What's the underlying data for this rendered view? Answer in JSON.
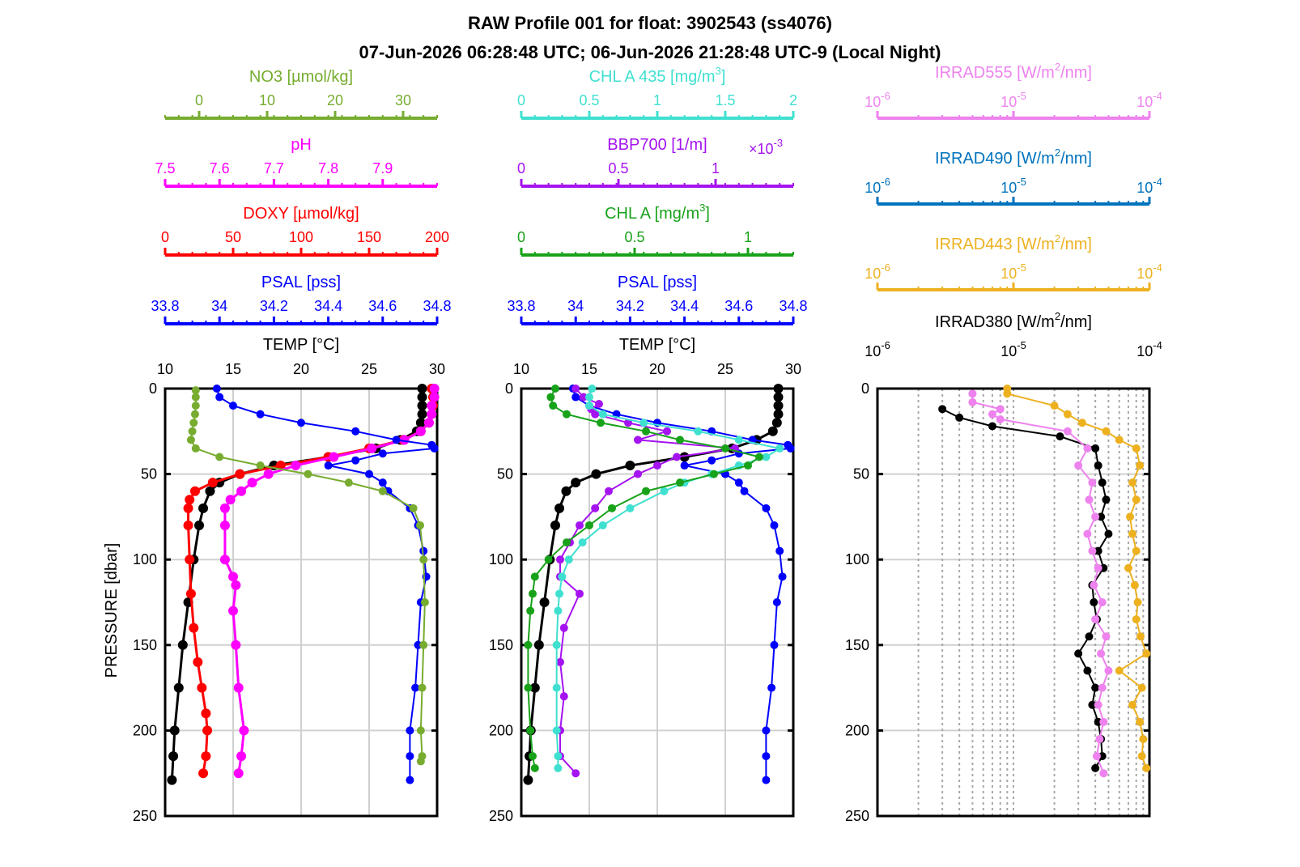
{
  "figure": {
    "title_line1": "RAW Profile 001 for float: 3902543 (ss4076)",
    "title_line2": "07-Jun-2026 06:28:48 UTC; 06-Jun-2026 21:28:48 UTC-9 (Local Night)"
  },
  "colors": {
    "temp": "#000000",
    "psal": "#0000ff",
    "doxy": "#ff0000",
    "ph": "#ff00ff",
    "no3": "#77ac30",
    "chla": "#18a21a",
    "bbp700": "#a513f0",
    "chla435": "#40e0d0",
    "irr380": "#000000",
    "irr443": "#edb120",
    "irr490": "#0072bd",
    "irr555": "#ee82ee",
    "grid": "#d0d0d0"
  },
  "chart_data": [
    {
      "type": "line",
      "panel": "left",
      "ylabel": "PRESSURE [dbar]",
      "ylim": [
        0,
        250
      ],
      "yticks": [
        0,
        50,
        100,
        150,
        200,
        250
      ],
      "axes": {
        "TEMP": {
          "label": "TEMP [°C]",
          "range": [
            10,
            30
          ],
          "ticks": [
            "10",
            "15",
            "20",
            "25",
            "30"
          ]
        },
        "PSAL": {
          "label": "PSAL [pss]",
          "range": [
            33.8,
            34.8
          ],
          "ticks": [
            "33.8",
            "34",
            "34.2",
            "34.4",
            "34.6",
            "34.8"
          ]
        },
        "DOXY": {
          "label": "DOXY [µmol/kg]",
          "range": [
            0,
            200
          ],
          "ticks": [
            "0",
            "50",
            "100",
            "150",
            "200"
          ]
        },
        "pH": {
          "label": "pH",
          "range": [
            7.5,
            8.0
          ],
          "ticks": [
            "7.5",
            "7.6",
            "7.7",
            "7.8",
            "7.9"
          ]
        },
        "NO3": {
          "label": "NO3 [µmol/kg]",
          "range": [
            -5,
            35
          ],
          "ticks": [
            "0",
            "10",
            "20",
            "30"
          ]
        }
      },
      "series": [
        {
          "name": "TEMP",
          "pressure": [
            0,
            5,
            10,
            15,
            20,
            25,
            30,
            35,
            40,
            45,
            50,
            55,
            60,
            70,
            80,
            100,
            125,
            150,
            175,
            200,
            215,
            229
          ],
          "values": [
            28.9,
            28.9,
            28.9,
            28.9,
            28.8,
            28.5,
            27.3,
            25.5,
            22.0,
            18.0,
            15.5,
            14.0,
            13.3,
            12.8,
            12.5,
            12.1,
            11.7,
            11.3,
            11.0,
            10.7,
            10.6,
            10.5
          ]
        },
        {
          "name": "PSAL",
          "pressure": [
            0,
            5,
            10,
            15,
            20,
            25,
            30,
            33,
            35,
            38,
            42,
            45,
            50,
            55,
            60,
            70,
            80,
            95,
            110,
            125,
            150,
            175,
            200,
            215,
            229
          ],
          "values": [
            33.99,
            34.0,
            34.05,
            34.15,
            34.3,
            34.5,
            34.65,
            34.78,
            34.79,
            34.6,
            34.5,
            34.4,
            34.55,
            34.6,
            34.62,
            34.7,
            34.73,
            34.75,
            34.76,
            34.74,
            34.73,
            34.72,
            34.7,
            34.7,
            34.7
          ]
        },
        {
          "name": "DOXY",
          "pressure": [
            0,
            5,
            10,
            15,
            20,
            25,
            30,
            35,
            40,
            45,
            50,
            55,
            60,
            65,
            70,
            80,
            100,
            120,
            140,
            160,
            175,
            190,
            200,
            215,
            225
          ],
          "values": [
            196,
            197,
            197,
            196,
            194,
            188,
            175,
            150,
            120,
            85,
            55,
            35,
            22,
            18,
            17,
            17,
            18,
            19,
            21,
            24,
            27,
            30,
            31,
            30,
            28
          ]
        },
        {
          "name": "pH",
          "pressure": [
            0,
            5,
            10,
            15,
            20,
            25,
            30,
            35,
            40,
            45,
            50,
            55,
            60,
            65,
            70,
            80,
            100,
            110,
            115,
            130,
            150,
            175,
            200,
            215,
            225
          ],
          "values": [
            7.995,
            7.995,
            7.99,
            7.99,
            7.985,
            7.97,
            7.94,
            7.88,
            7.81,
            7.74,
            7.69,
            7.66,
            7.64,
            7.62,
            7.61,
            7.61,
            7.61,
            7.625,
            7.63,
            7.625,
            7.63,
            7.635,
            7.645,
            7.64,
            7.635
          ]
        },
        {
          "name": "NO3",
          "pressure": [
            1,
            5,
            10,
            15,
            20,
            25,
            30,
            35,
            40,
            45,
            50,
            55,
            60,
            70,
            80,
            100,
            125,
            150,
            175,
            200,
            215,
            218
          ],
          "values": [
            -0.5,
            -0.5,
            -0.5,
            -0.6,
            -0.8,
            -1.0,
            -1.2,
            -0.5,
            3.0,
            9.0,
            16.0,
            22.0,
            27.0,
            31.5,
            32.5,
            33.0,
            33.2,
            33.0,
            32.8,
            32.6,
            32.8,
            32.6
          ]
        }
      ]
    },
    {
      "type": "line",
      "panel": "middle",
      "ylim": [
        0,
        250
      ],
      "yticks": [
        0,
        50,
        100,
        150,
        200,
        250
      ],
      "axes": {
        "TEMP": {
          "label": "TEMP [°C]",
          "range": [
            10,
            30
          ],
          "ticks": [
            "10",
            "15",
            "20",
            "25",
            "30"
          ]
        },
        "PSAL": {
          "label": "PSAL [pss]",
          "range": [
            33.8,
            34.8
          ],
          "ticks": [
            "33.8",
            "34",
            "34.2",
            "34.4",
            "34.6",
            "34.8"
          ]
        },
        "CHLA": {
          "label": "CHL A [mg/m³]",
          "range": [
            0,
            1.2
          ],
          "ticks": [
            "0",
            "0.5",
            "1"
          ]
        },
        "BBP700": {
          "label": "BBP700 [1/m]",
          "multiplier": "×10⁻³",
          "range": [
            0,
            1.4
          ],
          "ticks": [
            "0",
            "0.5",
            "1"
          ]
        },
        "CHLA435": {
          "label": "CHL A 435 [mg/m³]",
          "range": [
            0,
            2
          ],
          "ticks": [
            "0",
            "0.5",
            "1",
            "1.5",
            "2"
          ]
        }
      },
      "series": [
        {
          "name": "TEMP",
          "pressure": [
            0,
            5,
            10,
            15,
            20,
            25,
            30,
            35,
            40,
            45,
            50,
            55,
            60,
            70,
            80,
            100,
            125,
            150,
            175,
            200,
            215,
            229
          ],
          "values": [
            28.9,
            28.9,
            28.9,
            28.9,
            28.8,
            28.5,
            27.3,
            25.5,
            22.0,
            18.0,
            15.5,
            14.0,
            13.3,
            12.8,
            12.5,
            12.1,
            11.7,
            11.3,
            11.0,
            10.7,
            10.6,
            10.5
          ]
        },
        {
          "name": "PSAL",
          "pressure": [
            0,
            5,
            10,
            15,
            20,
            25,
            30,
            33,
            35,
            38,
            42,
            45,
            50,
            55,
            60,
            70,
            80,
            95,
            110,
            125,
            150,
            175,
            200,
            215,
            229
          ],
          "values": [
            33.99,
            34.0,
            34.05,
            34.15,
            34.3,
            34.5,
            34.65,
            34.78,
            34.79,
            34.6,
            34.5,
            34.4,
            34.55,
            34.6,
            34.62,
            34.7,
            34.73,
            34.75,
            34.76,
            34.74,
            34.73,
            34.72,
            34.7,
            34.7,
            34.7
          ]
        },
        {
          "name": "CHLA",
          "pressure": [
            0,
            5,
            10,
            15,
            20,
            25,
            30,
            35,
            40,
            45,
            50,
            55,
            60,
            70,
            80,
            90,
            100,
            110,
            120,
            130,
            150,
            175,
            200,
            215,
            222
          ],
          "values": [
            0.15,
            0.13,
            0.14,
            0.2,
            0.35,
            0.55,
            0.7,
            0.9,
            1.05,
            1.0,
            0.85,
            0.7,
            0.55,
            0.4,
            0.3,
            0.2,
            0.12,
            0.06,
            0.05,
            0.04,
            0.03,
            0.03,
            0.04,
            0.05,
            0.06
          ]
        },
        {
          "name": "BBP700",
          "pressure": [
            0,
            5,
            9,
            12,
            15,
            20,
            25,
            30,
            35,
            40,
            45,
            50,
            60,
            70,
            80,
            90,
            100,
            110,
            120,
            140,
            160,
            180,
            200,
            215,
            225
          ],
          "values": [
            0.28,
            0.32,
            0.4,
            0.36,
            0.38,
            0.55,
            0.75,
            0.6,
            1.1,
            0.8,
            0.7,
            0.6,
            0.45,
            0.38,
            0.3,
            0.25,
            0.2,
            0.2,
            0.3,
            0.22,
            0.2,
            0.22,
            0.2,
            0.2,
            0.28
          ]
        },
        {
          "name": "CHLA435",
          "pressure": [
            0,
            5,
            10,
            15,
            20,
            25,
            30,
            35,
            40,
            45,
            50,
            55,
            60,
            70,
            80,
            90,
            100,
            110,
            120,
            130,
            150,
            175,
            200,
            215,
            222
          ],
          "values": [
            0.52,
            0.5,
            0.5,
            0.6,
            0.9,
            1.3,
            1.6,
            1.9,
            1.8,
            1.6,
            1.4,
            1.2,
            1.05,
            0.8,
            0.6,
            0.45,
            0.35,
            0.3,
            0.28,
            0.27,
            0.26,
            0.26,
            0.26,
            0.27,
            0.27
          ]
        }
      ]
    },
    {
      "type": "line",
      "panel": "right",
      "ylim": [
        0,
        250
      ],
      "yticks": [
        0,
        50,
        100,
        150,
        200,
        250
      ],
      "xscale": "log",
      "xlim": [
        1e-06,
        0.0001
      ],
      "axes": {
        "IRRAD555": {
          "label": "IRRAD555 [W/m²/nm]",
          "ticks": [
            "10⁻⁶",
            "10⁻⁵",
            "10⁻⁴"
          ]
        },
        "IRRAD490": {
          "label": "IRRAD490 [W/m²/nm]",
          "ticks": [
            "10⁻⁶",
            "10⁻⁵",
            "10⁻⁴"
          ]
        },
        "IRRAD443": {
          "label": "IRRAD443 [W/m²/nm]",
          "ticks": [
            "10⁻⁶",
            "10⁻⁵",
            "10⁻⁴"
          ]
        },
        "IRRAD380": {
          "label": "IRRAD380 [W/m²/nm]",
          "ticks": [
            "10⁻⁶",
            "10⁻⁵",
            "10⁻⁴"
          ]
        }
      },
      "series": [
        {
          "name": "IRRAD380",
          "pressure": [
            12,
            17,
            22,
            28,
            35,
            45,
            55,
            65,
            75,
            85,
            95,
            105,
            115,
            125,
            135,
            145,
            155,
            165,
            175,
            185,
            195,
            205,
            215,
            222
          ],
          "values": [
            3e-06,
            4e-06,
            7e-06,
            2.2e-05,
            4e-05,
            4.2e-05,
            4.5e-05,
            4.8e-05,
            4.4e-05,
            5e-05,
            4.2e-05,
            4.6e-05,
            3.8e-05,
            3.9e-05,
            4.1e-05,
            3.6e-05,
            3e-05,
            3.5e-05,
            4e-05,
            3.8e-05,
            4.2e-05,
            4.4e-05,
            4.5e-05,
            4e-05
          ]
        },
        {
          "name": "IRRAD443",
          "pressure": [
            0,
            3,
            10,
            15,
            20,
            25,
            30,
            35,
            45,
            55,
            65,
            75,
            85,
            95,
            105,
            115,
            125,
            135,
            145,
            155,
            165,
            175,
            185,
            195,
            205,
            215,
            222
          ],
          "values": [
            9e-06,
            9e-06,
            2e-05,
            2.5e-05,
            3.2e-05,
            4.8e-05,
            6e-05,
            8e-05,
            8.5e-05,
            7.5e-05,
            8e-05,
            7.2e-05,
            7.5e-05,
            8e-05,
            7e-05,
            7.8e-05,
            8.2e-05,
            8e-05,
            8.6e-05,
            9.5e-05,
            6e-05,
            8.8e-05,
            7.5e-05,
            8.5e-05,
            9e-05,
            8.8e-05,
            9.5e-05
          ]
        },
        {
          "name": "IRRAD555",
          "pressure": [
            3,
            8,
            12,
            15,
            18,
            25,
            35,
            45,
            55,
            65,
            75,
            85,
            95,
            105,
            115,
            125,
            135,
            145,
            155,
            165,
            175,
            185,
            195,
            205,
            215,
            225
          ],
          "values": [
            5e-06,
            5e-06,
            8e-06,
            7e-06,
            8e-06,
            2.5e-05,
            3.5e-05,
            3e-05,
            3.8e-05,
            3.6e-05,
            4e-05,
            3.5e-05,
            3.8e-05,
            4.2e-05,
            3.9e-05,
            4.5e-05,
            4e-05,
            4.8e-05,
            4.4e-05,
            5e-05,
            4.5e-05,
            4.2e-05,
            4.6e-05,
            4.3e-05,
            4.1e-05,
            4.6e-05
          ]
        },
        {
          "name": "IRRAD490",
          "pressure": [],
          "values": []
        }
      ]
    }
  ]
}
